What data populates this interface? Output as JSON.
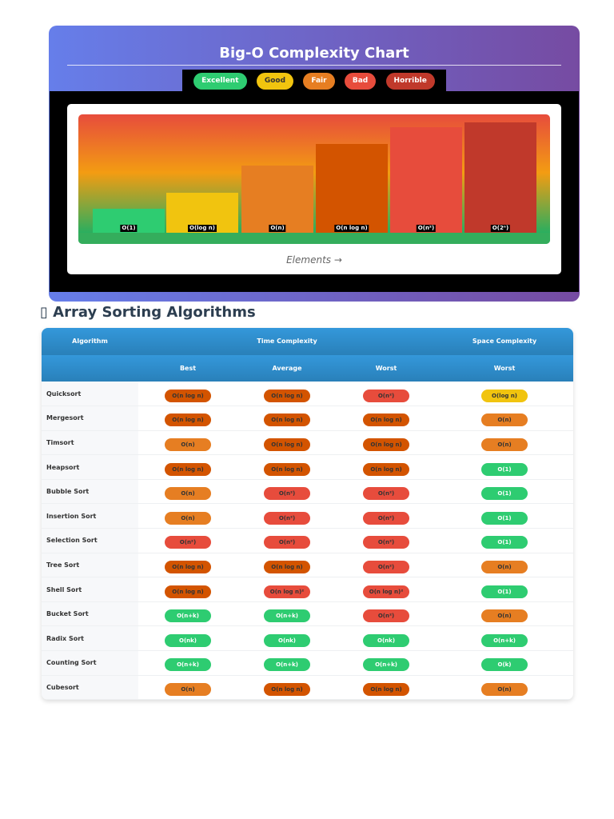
{
  "chart_card": {
    "title": "Big-O Complexity Chart",
    "x_axis_label": "Elements →"
  },
  "legend": [
    {
      "label": "Excellent",
      "color": "#2ecc71",
      "text": "#ffffff"
    },
    {
      "label": "Good",
      "color": "#f1c40f",
      "text": "#333333"
    },
    {
      "label": "Fair",
      "color": "#e67e22",
      "text": "#ffffff"
    },
    {
      "label": "Bad",
      "color": "#e74c3c",
      "text": "#ffffff"
    },
    {
      "label": "Horrible",
      "color": "#c0392b",
      "text": "#ffffff"
    }
  ],
  "chart_data": {
    "type": "bar",
    "title": "Big-O Complexity Chart",
    "xlabel": "Elements →",
    "ylabel": "",
    "categories": [
      "O(1)",
      "O(log n)",
      "O(n)",
      "O(n log n)",
      "O(n²)",
      "O(2ⁿ)"
    ],
    "values": [
      20,
      34,
      57,
      75,
      89,
      93
    ],
    "ylim": [
      0,
      100
    ],
    "colors": [
      "#2ecc71",
      "#f1c40f",
      "#e67e22",
      "#d35400",
      "#e74c3c",
      "#c0392b"
    ]
  },
  "section_title": "▯ Array Sorting Algorithms",
  "table": {
    "header_top": [
      "Algorithm",
      "Time Complexity",
      "Space Complexity"
    ],
    "header_sub": [
      "Best",
      "Average",
      "Worst",
      "Worst"
    ],
    "colors": {
      "excellent": "#2ecc71",
      "good": "#f1c40f",
      "fair": "#e67e22",
      "nlogn": "#d35400",
      "bad": "#e74c3c"
    },
    "rows": [
      {
        "name": "Quicksort",
        "cells": [
          [
            "O(n log n)",
            "nlogn"
          ],
          [
            "O(n log n)",
            "nlogn"
          ],
          [
            "O(n²)",
            "bad"
          ],
          [
            "O(log n)",
            "good"
          ]
        ]
      },
      {
        "name": "Mergesort",
        "cells": [
          [
            "O(n log n)",
            "nlogn"
          ],
          [
            "O(n log n)",
            "nlogn"
          ],
          [
            "O(n log n)",
            "nlogn"
          ],
          [
            "O(n)",
            "fair"
          ]
        ]
      },
      {
        "name": "Timsort",
        "cells": [
          [
            "O(n)",
            "fair"
          ],
          [
            "O(n log n)",
            "nlogn"
          ],
          [
            "O(n log n)",
            "nlogn"
          ],
          [
            "O(n)",
            "fair"
          ]
        ]
      },
      {
        "name": "Heapsort",
        "cells": [
          [
            "O(n log n)",
            "nlogn"
          ],
          [
            "O(n log n)",
            "nlogn"
          ],
          [
            "O(n log n)",
            "nlogn"
          ],
          [
            "O(1)",
            "excellent"
          ]
        ]
      },
      {
        "name": "Bubble Sort",
        "cells": [
          [
            "O(n)",
            "fair"
          ],
          [
            "O(n²)",
            "bad"
          ],
          [
            "O(n²)",
            "bad"
          ],
          [
            "O(1)",
            "excellent"
          ]
        ]
      },
      {
        "name": "Insertion Sort",
        "cells": [
          [
            "O(n)",
            "fair"
          ],
          [
            "O(n²)",
            "bad"
          ],
          [
            "O(n²)",
            "bad"
          ],
          [
            "O(1)",
            "excellent"
          ]
        ]
      },
      {
        "name": "Selection Sort",
        "cells": [
          [
            "O(n²)",
            "bad"
          ],
          [
            "O(n²)",
            "bad"
          ],
          [
            "O(n²)",
            "bad"
          ],
          [
            "O(1)",
            "excellent"
          ]
        ]
      },
      {
        "name": "Tree Sort",
        "cells": [
          [
            "O(n log n)",
            "nlogn"
          ],
          [
            "O(n log n)",
            "nlogn"
          ],
          [
            "O(n²)",
            "bad"
          ],
          [
            "O(n)",
            "fair"
          ]
        ]
      },
      {
        "name": "Shell Sort",
        "cells": [
          [
            "O(n log n)",
            "nlogn"
          ],
          [
            "O(n log n)²",
            "bad"
          ],
          [
            "O(n log n)²",
            "bad"
          ],
          [
            "O(1)",
            "excellent"
          ]
        ]
      },
      {
        "name": "Bucket Sort",
        "cells": [
          [
            "O(n+k)",
            "excellent"
          ],
          [
            "O(n+k)",
            "excellent"
          ],
          [
            "O(n²)",
            "bad"
          ],
          [
            "O(n)",
            "fair"
          ]
        ]
      },
      {
        "name": "Radix Sort",
        "cells": [
          [
            "O(nk)",
            "excellent"
          ],
          [
            "O(nk)",
            "excellent"
          ],
          [
            "O(nk)",
            "excellent"
          ],
          [
            "O(n+k)",
            "excellent"
          ]
        ]
      },
      {
        "name": "Counting Sort",
        "cells": [
          [
            "O(n+k)",
            "excellent"
          ],
          [
            "O(n+k)",
            "excellent"
          ],
          [
            "O(n+k)",
            "excellent"
          ],
          [
            "O(k)",
            "excellent"
          ]
        ]
      },
      {
        "name": "Cubesort",
        "cells": [
          [
            "O(n)",
            "fair"
          ],
          [
            "O(n log n)",
            "nlogn"
          ],
          [
            "O(n log n)",
            "nlogn"
          ],
          [
            "O(n)",
            "fair"
          ]
        ]
      }
    ]
  }
}
